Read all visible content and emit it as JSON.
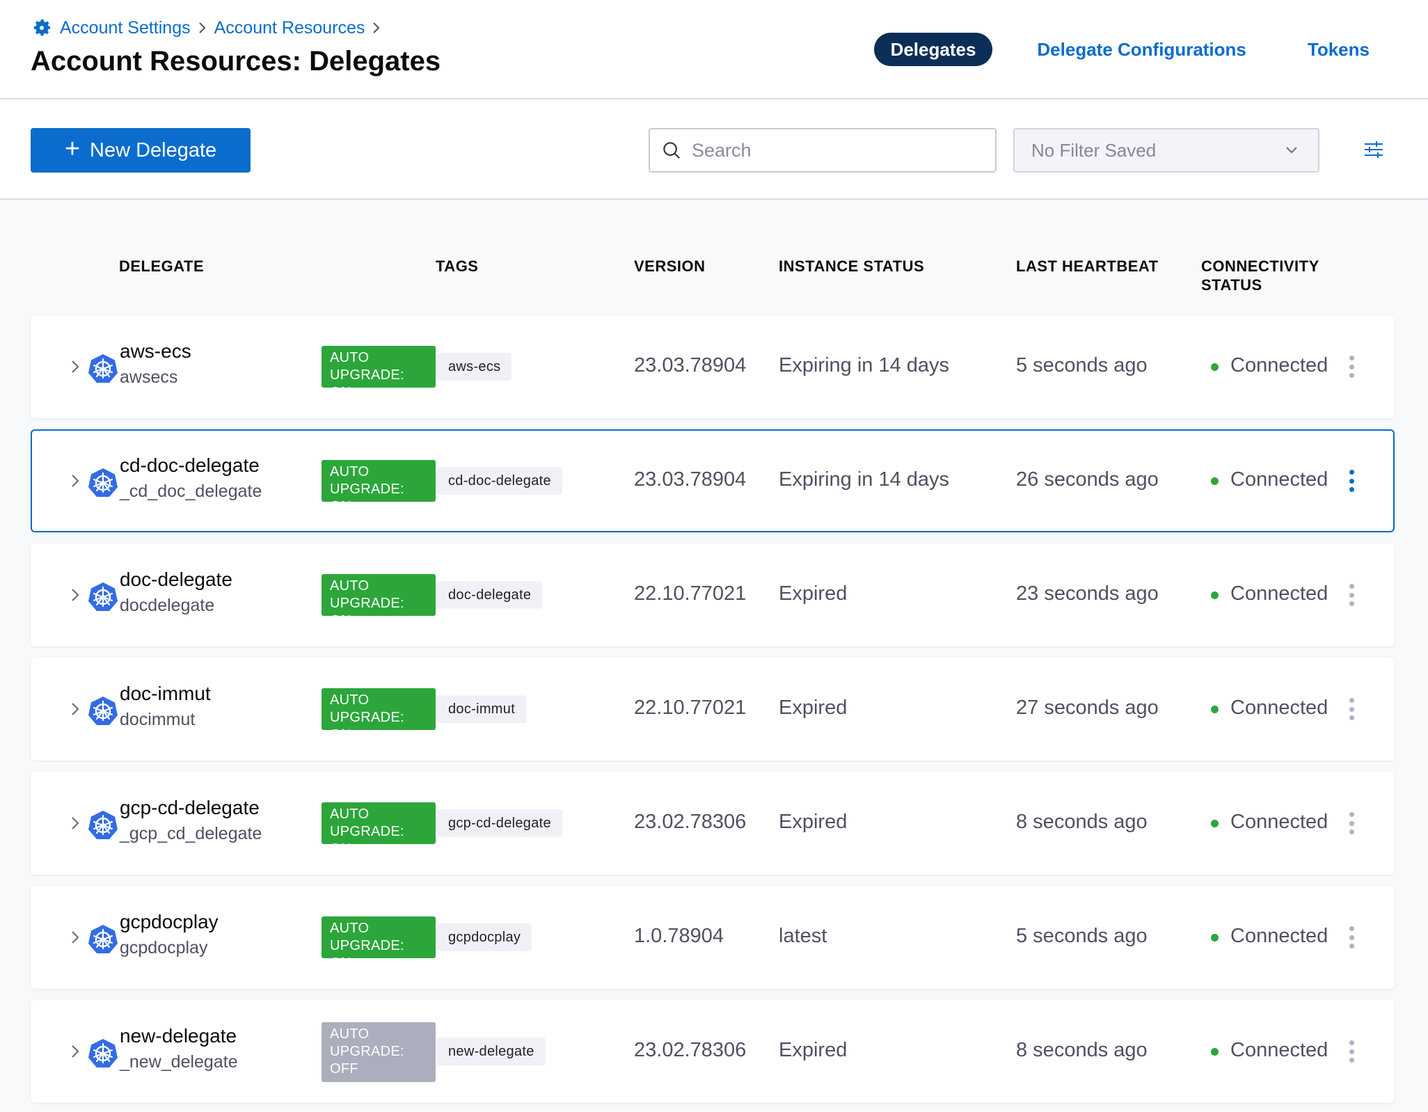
{
  "breadcrumb": {
    "items": [
      "Account Settings",
      "Account Resources"
    ]
  },
  "page_title": "Account Resources: Delegates",
  "tabs": [
    {
      "label": "Delegates",
      "active": true
    },
    {
      "label": "Delegate Configurations",
      "active": false
    },
    {
      "label": "Tokens",
      "active": false
    }
  ],
  "toolbar": {
    "new_delegate_label": "New Delegate",
    "search_placeholder": "Search",
    "filter_label": "No Filter Saved"
  },
  "table": {
    "columns": [
      "DELEGATE",
      "TAGS",
      "VERSION",
      "INSTANCE STATUS",
      "LAST HEARTBEAT",
      "CONNECTIVITY",
      "STATUS"
    ],
    "rows": [
      {
        "name": "aws-ecs",
        "sub": "awsecs",
        "upgrade": "AUTO UPGRADE: ON",
        "upgrade_lines": [
          "AUTO",
          "UPGRADE: ON"
        ],
        "tag": "aws-ecs",
        "version": "23.03.78904",
        "instance_status": "Expiring in 14 days",
        "heartbeat": "5 seconds ago",
        "connectivity": "Connected"
      },
      {
        "name": "cd-doc-delegate",
        "sub": "_cd_doc_delegate",
        "upgrade": "AUTO UPGRADE: ON",
        "upgrade_lines": [
          "AUTO",
          "UPGRADE: ON"
        ],
        "tag": "cd-doc-delegate",
        "version": "23.03.78904",
        "instance_status": "Expiring in 14 days",
        "heartbeat": "26 seconds ago",
        "connectivity": "Connected",
        "selected": true
      },
      {
        "name": "doc-delegate",
        "sub": "docdelegate",
        "upgrade": "AUTO UPGRADE: ON",
        "upgrade_lines": [
          "AUTO",
          "UPGRADE: ON"
        ],
        "tag": "doc-delegate",
        "version": "22.10.77021",
        "instance_status": "Expired",
        "heartbeat": "23 seconds ago",
        "connectivity": "Connected"
      },
      {
        "name": "doc-immut",
        "sub": "docimmut",
        "upgrade": "AUTO UPGRADE: ON",
        "upgrade_lines": [
          "AUTO",
          "UPGRADE: ON"
        ],
        "tag": "doc-immut",
        "version": "22.10.77021",
        "instance_status": "Expired",
        "heartbeat": "27 seconds ago",
        "connectivity": "Connected"
      },
      {
        "name": "gcp-cd-delegate",
        "sub": "_gcp_cd_delegate",
        "upgrade": "AUTO UPGRADE: ON",
        "upgrade_lines": [
          "AUTO",
          "UPGRADE: ON"
        ],
        "tag": "gcp-cd-delegate",
        "version": "23.02.78306",
        "instance_status": "Expired",
        "heartbeat": "8 seconds ago",
        "connectivity": "Connected"
      },
      {
        "name": "gcpdocplay",
        "sub": "gcpdocplay",
        "upgrade": "AUTO UPGRADE: ON",
        "upgrade_lines": [
          "AUTO",
          "UPGRADE: ON"
        ],
        "tag": "gcpdocplay",
        "version": "1.0.78904",
        "instance_status": "latest",
        "heartbeat": "5 seconds ago",
        "connectivity": "Connected"
      },
      {
        "name": "new-delegate",
        "sub": "_new_delegate",
        "upgrade": "AUTO UPGRADE: OFF",
        "upgrade_lines": [
          "AUTO",
          "UPGRADE:",
          "OFF"
        ],
        "tag": "new-delegate",
        "version": "23.02.78306",
        "instance_status": "Expired",
        "heartbeat": "8 seconds ago",
        "connectivity": "Connected"
      }
    ]
  },
  "colors": {
    "accent": "#0a6ccc",
    "active_tab_bg": "#0b2e57",
    "upgrade_on": "#2ca63a",
    "upgrade_off": "#acaebd",
    "connected_dot": "#2ca63a"
  },
  "icons": {
    "breadcrumb": "gear-icon",
    "new_button": "plus-icon",
    "search": "search-icon",
    "filter_select": "chevron-down-icon",
    "filter_button": "sliders-icon",
    "row_expand": "chevron-right-icon",
    "row_type": "kubernetes-icon",
    "row_menu": "more-vertical-icon"
  }
}
